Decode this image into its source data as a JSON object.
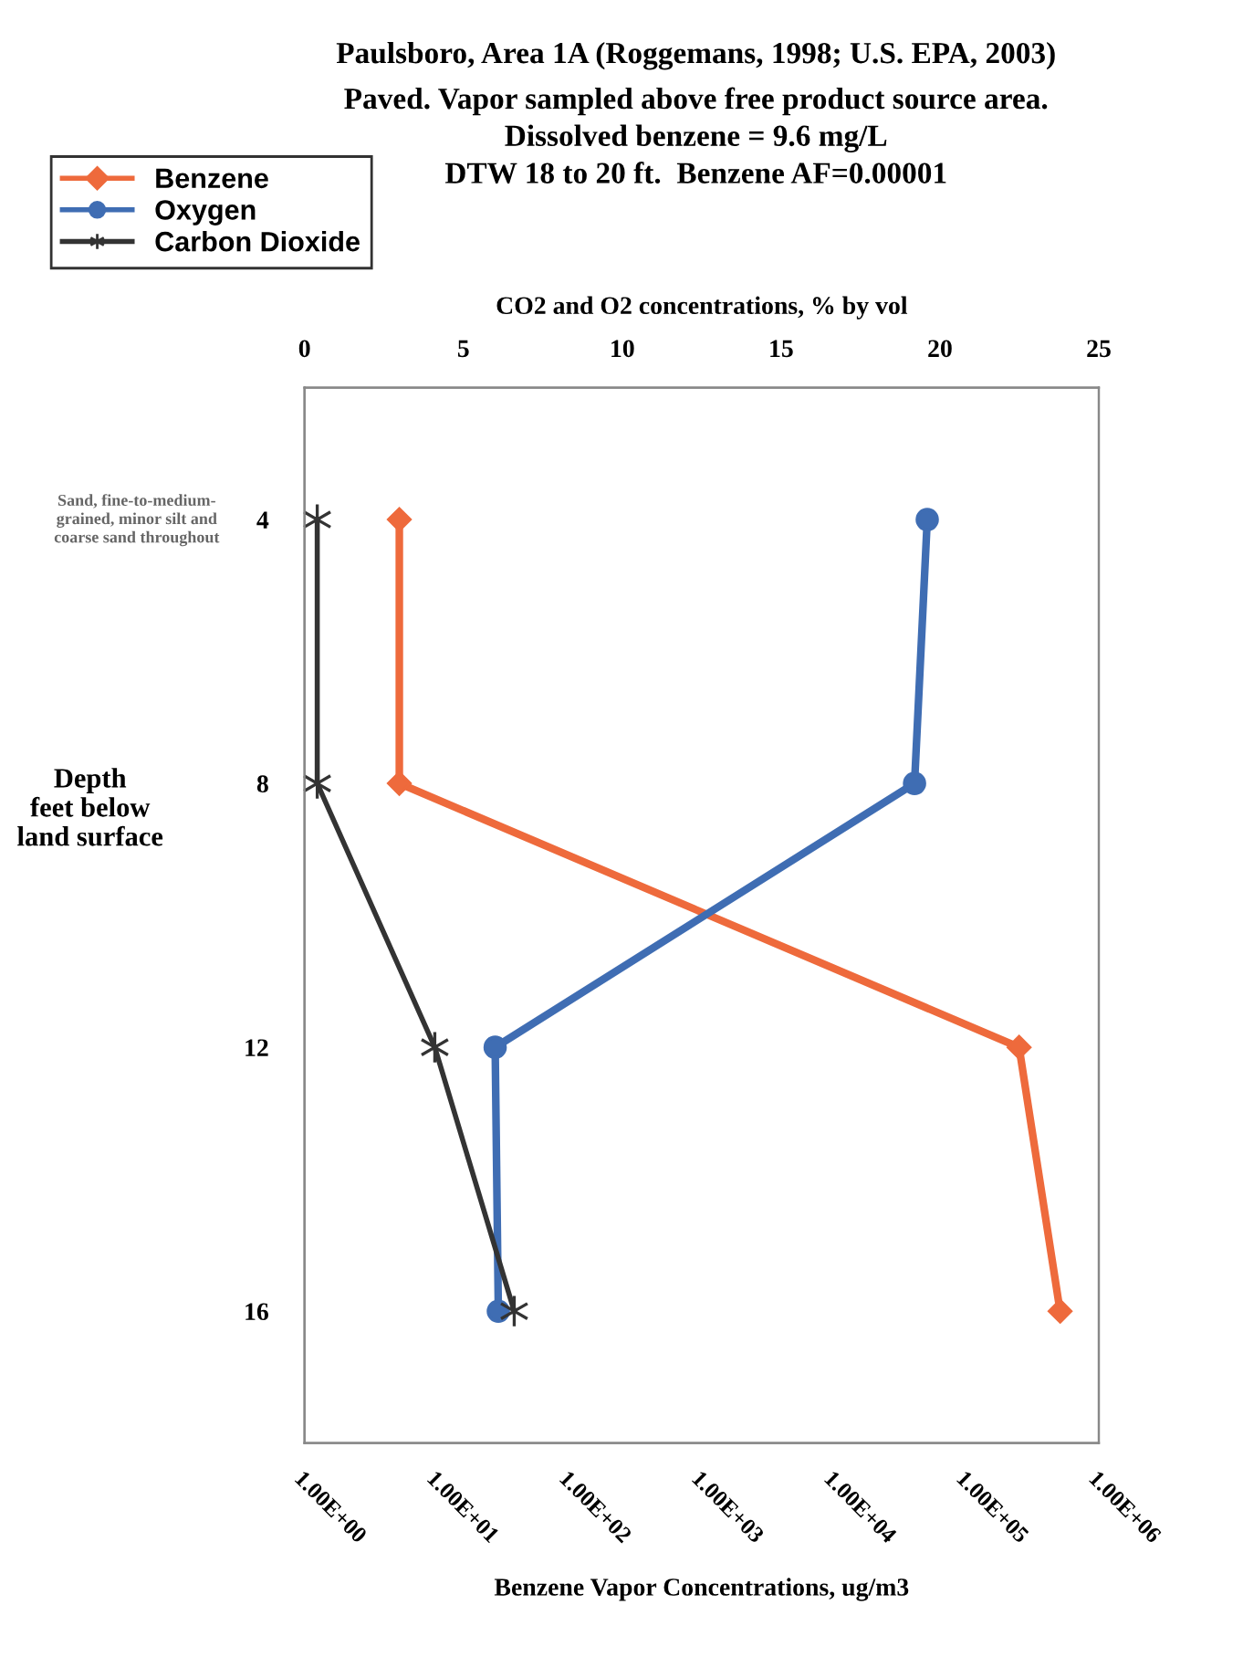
{
  "chart_data": {
    "type": "line",
    "title": "Paulsboro, Area 1A (Roggemans, 1998; U.S. EPA, 2003)",
    "subtitle": "Paved. Vapor sampled above free product source area.\nDissolved benzene = 9.6 mg/L\nDTW 18 to 20 ft.  Benzene AF=0.00001",
    "xlabel": "Benzene Vapor Concentrations, ug/m3",
    "x2label": "CO2 and O2 concentrations, % by vol",
    "ylabel": "Depth\nfeet below\nland surface",
    "annotations": [
      "Sand, fine-to-medium-\ngrained, minor silt and\ncoarse sand throughout"
    ],
    "series": [
      {
        "name": "Benzene",
        "color": "#ee6a3c",
        "marker": "diamond",
        "x": [
          5.2,
          5.2,
          250000,
          510000
        ],
        "values": [
          4,
          8,
          12,
          16
        ]
      },
      {
        "name": "Oxygen",
        "color": "#3f6db3",
        "marker": "circle",
        "axis": "x2",
        "x": [
          19.6,
          19.2,
          6.0,
          6.1
        ],
        "values": [
          4,
          8,
          12,
          16
        ]
      },
      {
        "name": "Carbon Dioxide",
        "color": "#333333",
        "marker": "cross",
        "axis": "x2",
        "x": [
          0.4,
          0.4,
          4.1,
          6.6
        ],
        "values": [
          4,
          8,
          12,
          16
        ]
      }
    ],
    "log": "x",
    "xlim": [
      1,
      1000000
    ],
    "xticks": [
      {
        "value": 1,
        "label": "1.00E+00"
      },
      {
        "value": 10,
        "label": "1.00E+01"
      },
      {
        "value": 100,
        "label": "1.00E+02"
      },
      {
        "value": 1000,
        "label": "1.00E+03"
      },
      {
        "value": 10000,
        "label": "1.00E+04"
      },
      {
        "value": 100000,
        "label": "1.00E+05"
      },
      {
        "value": 1000000,
        "label": "1.00E+06"
      }
    ],
    "x2lim": [
      0,
      25
    ],
    "x2ticks": [
      0,
      5,
      10,
      15,
      20,
      25
    ],
    "ylim": [
      18,
      2
    ],
    "yticks": [
      4,
      8,
      12,
      16
    ],
    "legend": "top left",
    "line_style": "solid",
    "grid": false
  }
}
